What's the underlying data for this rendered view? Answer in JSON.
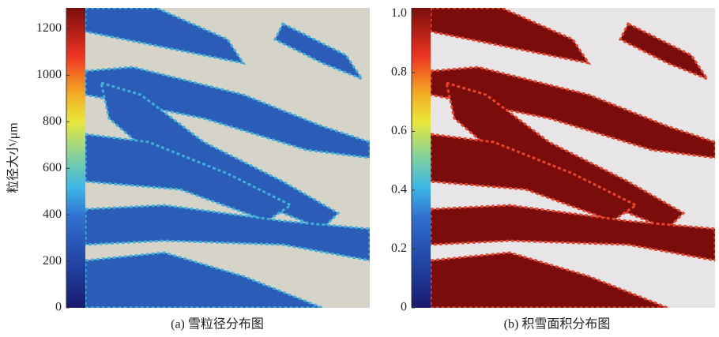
{
  "chart_data": [
    {
      "type": "raster-map",
      "caption": "(a) 雪粒径分布图",
      "ylabel": "粒径大小/μm",
      "ylim": [
        0,
        1290
      ],
      "yticks": [
        0,
        200,
        400,
        600,
        800,
        1000,
        1200
      ],
      "colormap": "jet",
      "color": "#2a5cb8",
      "background": "#d6d3c9"
    },
    {
      "type": "raster-map",
      "caption": "(b) 积雪面积分布图",
      "ylim": [
        0,
        1.02
      ],
      "yticks": [
        0,
        0.2,
        0.4,
        0.6,
        0.8,
        {
          "value": 1,
          "label": "1.0"
        }
      ],
      "colormap": "jet",
      "color": "#7a0c0c",
      "background": "#e8e5e8"
    }
  ]
}
